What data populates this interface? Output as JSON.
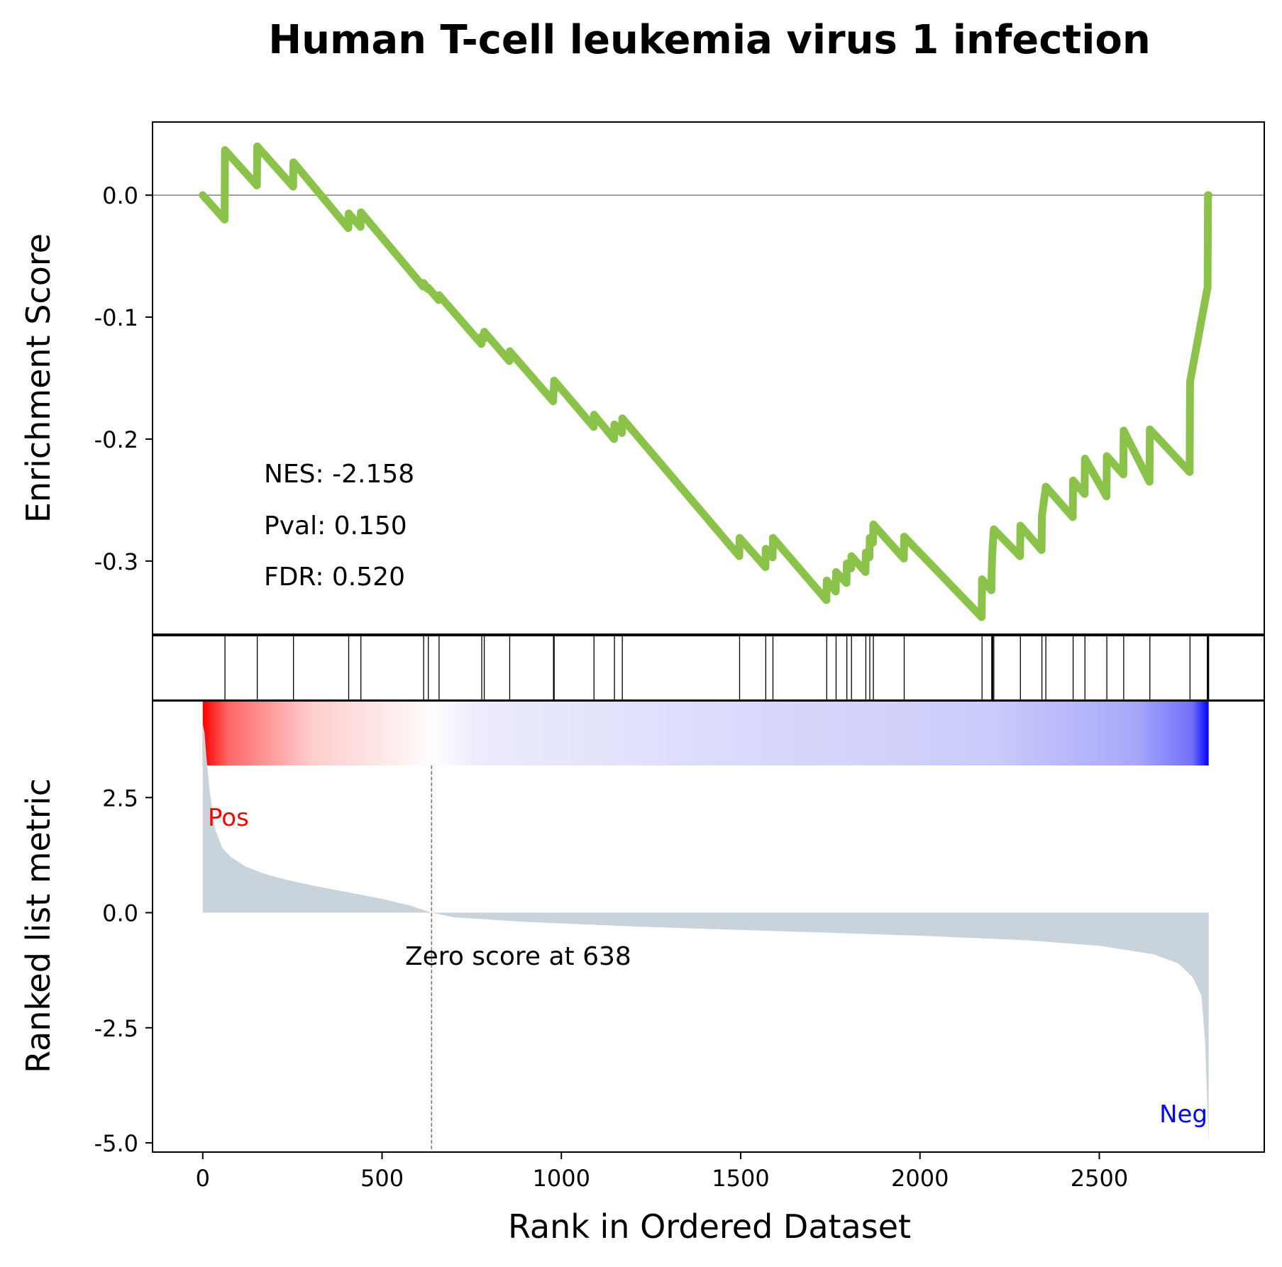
{
  "chart_data": {
    "type": "line",
    "title": "Human T-cell leukemia virus 1 infection",
    "xlabel": "Rank in Ordered Dataset",
    "top_ylabel": "Enrichment Score",
    "bottom_ylabel": "Ranked list metric",
    "xlim": [
      -140,
      2960
    ],
    "x_ticks": [
      "0",
      "500",
      "1000",
      "1500",
      "2000",
      "2500"
    ],
    "x_tick_values": [
      0,
      500,
      1000,
      1500,
      2000,
      2500
    ],
    "es_ylim": [
      -0.36,
      0.06
    ],
    "es_y_ticks": [
      "0.0",
      "-0.1",
      "-0.2",
      "-0.3"
    ],
    "es_y_tick_values": [
      0.0,
      -0.1,
      -0.2,
      -0.3
    ],
    "metric_ylim": [
      -5.2,
      4.6
    ],
    "metric_y_ticks": [
      "2.5",
      "0.0",
      "-2.5",
      "-5.0"
    ],
    "metric_y_tick_values": [
      2.5,
      0.0,
      -2.5,
      -5.0
    ],
    "stats": {
      "nes": "NES: -2.158",
      "pval": "Pval: 0.150",
      "fdr": "FDR: 0.520"
    },
    "pos_label": "Pos",
    "neg_label": "Neg",
    "zero_score_label": "Zero score at 638",
    "zero_score_rank": 638,
    "colors": {
      "es_line": "#8bc34a",
      "metric_fill": "#c9d3dc",
      "pos": "#ff0000",
      "neg": "#0000ff"
    },
    "hits": [
      62,
      152,
      253,
      407,
      441,
      616,
      629,
      659,
      778,
      785,
      856,
      978,
      980,
      1091,
      1148,
      1170,
      1497,
      1570,
      1590,
      1740,
      1766,
      1796,
      1809,
      1849,
      1860,
      1870,
      1956,
      2173,
      2200,
      2201,
      2203,
      2206,
      2280,
      2340,
      2351,
      2427,
      2460,
      2521,
      2568,
      2641,
      2753,
      2801,
      2802,
      2804,
      2805
    ],
    "es_points": [
      {
        "x": 0,
        "y": 0.0
      },
      {
        "x": 61,
        "y": -0.02
      },
      {
        "x": 62,
        "y": 0.037
      },
      {
        "x": 151,
        "y": 0.008
      },
      {
        "x": 152,
        "y": 0.04
      },
      {
        "x": 252,
        "y": 0.007
      },
      {
        "x": 253,
        "y": 0.027
      },
      {
        "x": 406,
        "y": -0.027
      },
      {
        "x": 407,
        "y": -0.015
      },
      {
        "x": 440,
        "y": -0.026
      },
      {
        "x": 441,
        "y": -0.014
      },
      {
        "x": 615,
        "y": -0.075
      },
      {
        "x": 616,
        "y": -0.072
      },
      {
        "x": 628,
        "y": -0.077
      },
      {
        "x": 629,
        "y": -0.076
      },
      {
        "x": 658,
        "y": -0.086
      },
      {
        "x": 659,
        "y": -0.082
      },
      {
        "x": 777,
        "y": -0.122
      },
      {
        "x": 778,
        "y": -0.116
      },
      {
        "x": 784,
        "y": -0.118
      },
      {
        "x": 785,
        "y": -0.112
      },
      {
        "x": 855,
        "y": -0.136
      },
      {
        "x": 856,
        "y": -0.128
      },
      {
        "x": 977,
        "y": -0.169
      },
      {
        "x": 978,
        "y": -0.16
      },
      {
        "x": 979,
        "y": -0.161
      },
      {
        "x": 980,
        "y": -0.152
      },
      {
        "x": 1090,
        "y": -0.19
      },
      {
        "x": 1091,
        "y": -0.18
      },
      {
        "x": 1147,
        "y": -0.2
      },
      {
        "x": 1148,
        "y": -0.188
      },
      {
        "x": 1169,
        "y": -0.195
      },
      {
        "x": 1170,
        "y": -0.183
      },
      {
        "x": 1496,
        "y": -0.296
      },
      {
        "x": 1497,
        "y": -0.281
      },
      {
        "x": 1569,
        "y": -0.305
      },
      {
        "x": 1570,
        "y": -0.29
      },
      {
        "x": 1589,
        "y": -0.297
      },
      {
        "x": 1590,
        "y": -0.281
      },
      {
        "x": 1739,
        "y": -0.332
      },
      {
        "x": 1740,
        "y": -0.316
      },
      {
        "x": 1765,
        "y": -0.325
      },
      {
        "x": 1766,
        "y": -0.309
      },
      {
        "x": 1795,
        "y": -0.318
      },
      {
        "x": 1796,
        "y": -0.302
      },
      {
        "x": 1808,
        "y": -0.306
      },
      {
        "x": 1809,
        "y": -0.296
      },
      {
        "x": 1848,
        "y": -0.309
      },
      {
        "x": 1849,
        "y": -0.293
      },
      {
        "x": 1859,
        "y": -0.297
      },
      {
        "x": 1860,
        "y": -0.281
      },
      {
        "x": 1869,
        "y": -0.285
      },
      {
        "x": 1870,
        "y": -0.27
      },
      {
        "x": 1955,
        "y": -0.298
      },
      {
        "x": 1956,
        "y": -0.28
      },
      {
        "x": 2172,
        "y": -0.346
      },
      {
        "x": 2173,
        "y": -0.315
      },
      {
        "x": 2199,
        "y": -0.324
      },
      {
        "x": 2200,
        "y": -0.308
      },
      {
        "x": 2201,
        "y": -0.298
      },
      {
        "x": 2203,
        "y": -0.286
      },
      {
        "x": 2206,
        "y": -0.274
      },
      {
        "x": 2279,
        "y": -0.296
      },
      {
        "x": 2280,
        "y": -0.271
      },
      {
        "x": 2339,
        "y": -0.291
      },
      {
        "x": 2340,
        "y": -0.263
      },
      {
        "x": 2351,
        "y": -0.239
      },
      {
        "x": 2426,
        "y": -0.264
      },
      {
        "x": 2427,
        "y": -0.234
      },
      {
        "x": 2459,
        "y": -0.245
      },
      {
        "x": 2460,
        "y": -0.216
      },
      {
        "x": 2520,
        "y": -0.247
      },
      {
        "x": 2521,
        "y": -0.214
      },
      {
        "x": 2567,
        "y": -0.229
      },
      {
        "x": 2568,
        "y": -0.193
      },
      {
        "x": 2640,
        "y": -0.235
      },
      {
        "x": 2641,
        "y": -0.192
      },
      {
        "x": 2752,
        "y": -0.227
      },
      {
        "x": 2753,
        "y": -0.153
      },
      {
        "x": 2801,
        "y": -0.077
      },
      {
        "x": 2802,
        "y": -0.076
      },
      {
        "x": 2803,
        "y": 0.0
      },
      {
        "x": 2805,
        "y": 0.0
      }
    ],
    "metric_points": [
      {
        "x": 0,
        "y": 4.1
      },
      {
        "x": 5,
        "y": 3.9
      },
      {
        "x": 10,
        "y": 3.4
      },
      {
        "x": 20,
        "y": 2.6
      },
      {
        "x": 35,
        "y": 1.8
      },
      {
        "x": 55,
        "y": 1.4
      },
      {
        "x": 80,
        "y": 1.2
      },
      {
        "x": 120,
        "y": 1.0
      },
      {
        "x": 170,
        "y": 0.85
      },
      {
        "x": 230,
        "y": 0.72
      },
      {
        "x": 300,
        "y": 0.6
      },
      {
        "x": 400,
        "y": 0.45
      },
      {
        "x": 500,
        "y": 0.3
      },
      {
        "x": 580,
        "y": 0.15
      },
      {
        "x": 638,
        "y": 0.0
      },
      {
        "x": 700,
        "y": -0.1
      },
      {
        "x": 900,
        "y": -0.2
      },
      {
        "x": 1200,
        "y": -0.3
      },
      {
        "x": 1600,
        "y": -0.4
      },
      {
        "x": 2000,
        "y": -0.5
      },
      {
        "x": 2300,
        "y": -0.6
      },
      {
        "x": 2500,
        "y": -0.72
      },
      {
        "x": 2650,
        "y": -0.9
      },
      {
        "x": 2720,
        "y": -1.1
      },
      {
        "x": 2760,
        "y": -1.4
      },
      {
        "x": 2785,
        "y": -1.8
      },
      {
        "x": 2795,
        "y": -2.8
      },
      {
        "x": 2800,
        "y": -3.9
      },
      {
        "x": 2805,
        "y": -5.0
      }
    ],
    "colorbar_stops": [
      {
        "rank": 0,
        "color": "#ff0000"
      },
      {
        "rank": 70,
        "color": "#ff6666"
      },
      {
        "rank": 300,
        "color": "#ffcccc"
      },
      {
        "rank": 560,
        "color": "#fff0f0"
      },
      {
        "rank": 638,
        "color": "#ffffff"
      },
      {
        "rank": 760,
        "color": "#ececfc"
      },
      {
        "rank": 1400,
        "color": "#dcdcfc"
      },
      {
        "rank": 2200,
        "color": "#cbcbfb"
      },
      {
        "rank": 2600,
        "color": "#a8a8fb"
      },
      {
        "rank": 2760,
        "color": "#7070fb"
      },
      {
        "rank": 2805,
        "color": "#0000ff"
      }
    ]
  }
}
